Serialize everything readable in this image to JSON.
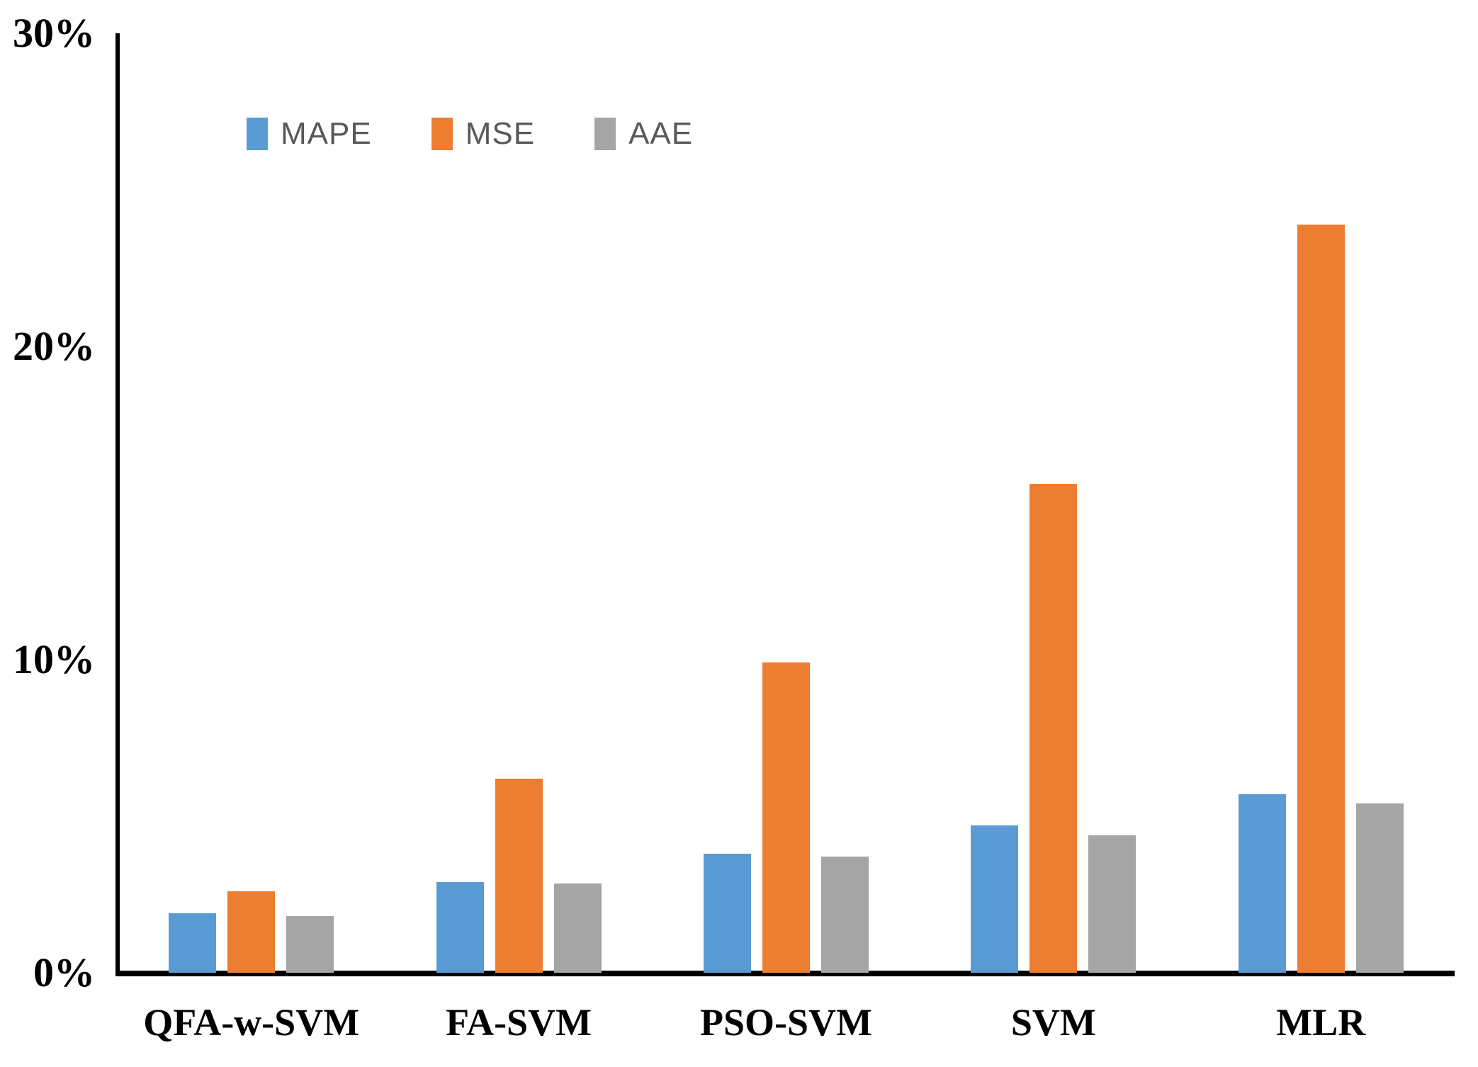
{
  "chart_data": {
    "type": "bar",
    "title": "",
    "xlabel": "",
    "ylabel": "",
    "categories": [
      "QFA-w-SVM",
      "FA-SVM",
      "PSO-SVM",
      "SVM",
      "MLR"
    ],
    "series": [
      {
        "name": "MAPE",
        "color": "#5B9BD5",
        "values": [
          1.9,
          2.9,
          3.8,
          4.7,
          5.7
        ]
      },
      {
        "name": "MSE",
        "color": "#ED7D31",
        "values": [
          2.6,
          6.2,
          9.9,
          15.6,
          23.9
        ]
      },
      {
        "name": "AAE",
        "color": "#A5A5A5",
        "values": [
          1.8,
          2.85,
          3.7,
          4.4,
          5.4
        ]
      }
    ],
    "ylim": [
      0,
      30
    ],
    "y_unit": "%",
    "y_ticks": [
      {
        "value": 30,
        "label": "30%"
      },
      {
        "value": 20,
        "label": "20%"
      },
      {
        "value": 10,
        "label": "10%"
      },
      {
        "value": 0,
        "label": "0%"
      }
    ],
    "grid": false,
    "legend_position": "inside-top-left"
  },
  "legend": {
    "items": [
      {
        "label": "MAPE",
        "color": "#5B9BD5"
      },
      {
        "label": "MSE",
        "color": "#ED7D31"
      },
      {
        "label": "AAE",
        "color": "#A5A5A5"
      }
    ]
  },
  "colors": {
    "background": "#FFFFFF",
    "axis": "#000000",
    "tick_text": "#000000",
    "legend_text": "#595959",
    "series_blue": "#5B9BD5",
    "series_orange": "#ED7D31",
    "series_gray": "#A5A5A5"
  }
}
